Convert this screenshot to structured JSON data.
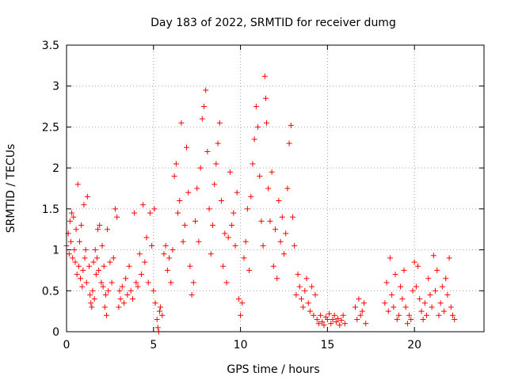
{
  "chart_data": {
    "type": "scatter",
    "title": "Day 183 of 2022, SRMTID for receiver dumg",
    "xlabel": "GPS time / hours",
    "ylabel": "SRMTID / TECUs",
    "xlim": [
      0,
      24
    ],
    "ylim": [
      0,
      3.5
    ],
    "x_ticks": [
      0,
      5,
      10,
      15,
      20
    ],
    "x_tick_labels": [
      "0",
      "5",
      "10",
      "15",
      "20"
    ],
    "y_ticks": [
      0,
      0.5,
      1,
      1.5,
      2,
      2.5,
      3,
      3.5
    ],
    "y_tick_labels": [
      "0",
      "0.5",
      "1",
      "1.5",
      "2",
      "2.5",
      "3",
      "3.5"
    ],
    "grid": true,
    "marker": "plus",
    "color": "#ff0000",
    "series": [
      {
        "name": "SRMTID",
        "points": [
          [
            0.0,
            1.05
          ],
          [
            0.1,
            1.2
          ],
          [
            0.15,
            0.95
          ],
          [
            0.2,
            1.35
          ],
          [
            0.25,
            1.1
          ],
          [
            0.3,
            1.45
          ],
          [
            0.35,
            0.9
          ],
          [
            0.4,
            1.4
          ],
          [
            0.45,
            1.0
          ],
          [
            0.5,
            0.85
          ],
          [
            0.55,
            1.25
          ],
          [
            0.6,
            0.7
          ],
          [
            0.65,
            1.8
          ],
          [
            0.7,
            0.8
          ],
          [
            0.75,
            1.1
          ],
          [
            0.8,
            0.65
          ],
          [
            0.85,
            1.3
          ],
          [
            0.9,
            0.55
          ],
          [
            0.95,
            0.75
          ],
          [
            1.0,
            1.55
          ],
          [
            1.05,
            0.9
          ],
          [
            1.1,
            1.0
          ],
          [
            1.15,
            0.6
          ],
          [
            1.2,
            1.65
          ],
          [
            1.3,
            0.8
          ],
          [
            1.35,
            0.45
          ],
          [
            1.4,
            0.35
          ],
          [
            1.45,
            0.3
          ],
          [
            1.5,
            0.5
          ],
          [
            1.55,
            0.85
          ],
          [
            1.6,
            0.4
          ],
          [
            1.65,
            1.0
          ],
          [
            1.7,
            0.7
          ],
          [
            1.75,
            0.9
          ],
          [
            1.8,
            1.25
          ],
          [
            1.85,
            0.75
          ],
          [
            1.9,
            1.3
          ],
          [
            2.0,
            0.6
          ],
          [
            2.05,
            1.05
          ],
          [
            2.1,
            0.55
          ],
          [
            2.15,
            0.8
          ],
          [
            2.2,
            0.3
          ],
          [
            2.25,
            0.45
          ],
          [
            2.3,
            0.2
          ],
          [
            2.35,
            1.25
          ],
          [
            2.4,
            0.5
          ],
          [
            2.5,
            0.85
          ],
          [
            2.6,
            0.6
          ],
          [
            2.7,
            0.9
          ],
          [
            2.8,
            1.5
          ],
          [
            2.9,
            1.4
          ],
          [
            3.0,
            0.3
          ],
          [
            3.05,
            0.5
          ],
          [
            3.1,
            0.4
          ],
          [
            3.2,
            0.55
          ],
          [
            3.3,
            0.35
          ],
          [
            3.4,
            0.65
          ],
          [
            3.5,
            0.45
          ],
          [
            3.6,
            0.8
          ],
          [
            3.7,
            0.5
          ],
          [
            3.8,
            0.4
          ],
          [
            3.9,
            1.45
          ],
          [
            4.0,
            0.6
          ],
          [
            4.1,
            0.55
          ],
          [
            4.2,
            0.95
          ],
          [
            4.3,
            0.7
          ],
          [
            4.4,
            1.55
          ],
          [
            4.5,
            0.85
          ],
          [
            4.6,
            1.15
          ],
          [
            4.7,
            0.6
          ],
          [
            4.8,
            1.45
          ],
          [
            4.9,
            1.05
          ],
          [
            5.0,
            0.5
          ],
          [
            5.05,
            1.5
          ],
          [
            5.1,
            0.35
          ],
          [
            5.2,
            0.15
          ],
          [
            5.25,
            0.05
          ],
          [
            5.3,
            0.0
          ],
          [
            5.35,
            0.25
          ],
          [
            5.4,
            0.3
          ],
          [
            5.5,
            0.2
          ],
          [
            5.6,
            0.95
          ],
          [
            5.7,
            1.05
          ],
          [
            5.8,
            0.75
          ],
          [
            5.9,
            0.9
          ],
          [
            6.0,
            0.6
          ],
          [
            6.1,
            1.0
          ],
          [
            6.2,
            1.9
          ],
          [
            6.3,
            2.05
          ],
          [
            6.4,
            1.45
          ],
          [
            6.5,
            1.6
          ],
          [
            6.6,
            2.55
          ],
          [
            6.7,
            1.1
          ],
          [
            6.8,
            1.3
          ],
          [
            6.9,
            2.25
          ],
          [
            7.0,
            1.7
          ],
          [
            7.1,
            0.8
          ],
          [
            7.2,
            0.45
          ],
          [
            7.3,
            0.6
          ],
          [
            7.4,
            1.35
          ],
          [
            7.5,
            1.75
          ],
          [
            7.6,
            1.1
          ],
          [
            7.7,
            2.0
          ],
          [
            7.8,
            2.6
          ],
          [
            7.9,
            2.75
          ],
          [
            8.0,
            2.95
          ],
          [
            8.1,
            2.2
          ],
          [
            8.2,
            1.5
          ],
          [
            8.3,
            0.95
          ],
          [
            8.4,
            1.3
          ],
          [
            8.5,
            1.8
          ],
          [
            8.6,
            2.05
          ],
          [
            8.7,
            2.3
          ],
          [
            8.8,
            2.55
          ],
          [
            8.9,
            1.6
          ],
          [
            9.0,
            0.8
          ],
          [
            9.1,
            1.2
          ],
          [
            9.2,
            0.6
          ],
          [
            9.3,
            1.15
          ],
          [
            9.4,
            1.95
          ],
          [
            9.5,
            1.3
          ],
          [
            9.6,
            1.45
          ],
          [
            9.7,
            1.05
          ],
          [
            9.8,
            1.7
          ],
          [
            9.9,
            0.4
          ],
          [
            10.0,
            0.2
          ],
          [
            10.1,
            0.35
          ],
          [
            10.2,
            0.9
          ],
          [
            10.3,
            1.1
          ],
          [
            10.4,
            1.5
          ],
          [
            10.5,
            0.75
          ],
          [
            10.6,
            1.65
          ],
          [
            10.7,
            2.05
          ],
          [
            10.8,
            2.35
          ],
          [
            10.9,
            2.75
          ],
          [
            11.0,
            2.5
          ],
          [
            11.1,
            1.9
          ],
          [
            11.2,
            1.35
          ],
          [
            11.3,
            1.05
          ],
          [
            11.4,
            3.12
          ],
          [
            11.45,
            2.85
          ],
          [
            11.5,
            2.55
          ],
          [
            11.6,
            1.75
          ],
          [
            11.7,
            1.35
          ],
          [
            11.8,
            1.95
          ],
          [
            11.9,
            0.8
          ],
          [
            12.0,
            1.25
          ],
          [
            12.1,
            0.65
          ],
          [
            12.2,
            1.6
          ],
          [
            12.3,
            1.1
          ],
          [
            12.4,
            1.4
          ],
          [
            12.5,
            0.95
          ],
          [
            12.6,
            1.2
          ],
          [
            12.7,
            1.75
          ],
          [
            12.8,
            2.3
          ],
          [
            12.9,
            2.52
          ],
          [
            13.0,
            1.4
          ],
          [
            13.1,
            1.05
          ],
          [
            13.2,
            0.45
          ],
          [
            13.3,
            0.7
          ],
          [
            13.4,
            0.55
          ],
          [
            13.5,
            0.4
          ],
          [
            13.6,
            0.3
          ],
          [
            13.7,
            0.5
          ],
          [
            13.8,
            0.65
          ],
          [
            13.9,
            0.35
          ],
          [
            14.0,
            0.25
          ],
          [
            14.1,
            0.55
          ],
          [
            14.2,
            0.2
          ],
          [
            14.3,
            0.45
          ],
          [
            14.4,
            0.15
          ],
          [
            14.5,
            0.1
          ],
          [
            14.6,
            0.2
          ],
          [
            14.7,
            0.12
          ],
          [
            14.8,
            0.08
          ],
          [
            14.9,
            0.18
          ],
          [
            15.0,
            0.15
          ],
          [
            15.1,
            0.22
          ],
          [
            15.2,
            0.1
          ],
          [
            15.3,
            0.15
          ],
          [
            15.4,
            0.2
          ],
          [
            15.5,
            0.12
          ],
          [
            15.6,
            0.16
          ],
          [
            15.7,
            0.08
          ],
          [
            15.8,
            0.14
          ],
          [
            15.9,
            0.2
          ],
          [
            16.0,
            0.1
          ],
          [
            16.6,
            0.3
          ],
          [
            16.7,
            0.15
          ],
          [
            16.8,
            0.4
          ],
          [
            16.9,
            0.2
          ],
          [
            17.0,
            0.25
          ],
          [
            17.1,
            0.35
          ],
          [
            17.2,
            0.1
          ],
          [
            18.3,
            0.35
          ],
          [
            18.4,
            0.6
          ],
          [
            18.5,
            0.25
          ],
          [
            18.6,
            0.9
          ],
          [
            18.7,
            0.45
          ],
          [
            18.8,
            0.3
          ],
          [
            18.9,
            0.7
          ],
          [
            19.0,
            0.15
          ],
          [
            19.1,
            0.2
          ],
          [
            19.2,
            0.55
          ],
          [
            19.3,
            0.4
          ],
          [
            19.4,
            0.75
          ],
          [
            19.5,
            0.3
          ],
          [
            19.6,
            0.1
          ],
          [
            19.7,
            0.2
          ],
          [
            19.8,
            0.15
          ],
          [
            19.9,
            0.5
          ],
          [
            20.0,
            0.85
          ],
          [
            20.1,
            0.55
          ],
          [
            20.2,
            0.8
          ],
          [
            20.3,
            0.4
          ],
          [
            20.4,
            0.25
          ],
          [
            20.5,
            0.15
          ],
          [
            20.6,
            0.35
          ],
          [
            20.7,
            0.2
          ],
          [
            20.8,
            0.65
          ],
          [
            20.9,
            0.45
          ],
          [
            21.0,
            0.3
          ],
          [
            21.1,
            0.93
          ],
          [
            21.2,
            0.5
          ],
          [
            21.3,
            0.75
          ],
          [
            21.4,
            0.2
          ],
          [
            21.5,
            0.35
          ],
          [
            21.6,
            0.55
          ],
          [
            21.7,
            0.25
          ],
          [
            21.8,
            0.65
          ],
          [
            21.9,
            0.45
          ],
          [
            22.0,
            0.9
          ],
          [
            22.1,
            0.3
          ],
          [
            22.2,
            0.2
          ],
          [
            22.3,
            0.15
          ]
        ]
      }
    ]
  }
}
